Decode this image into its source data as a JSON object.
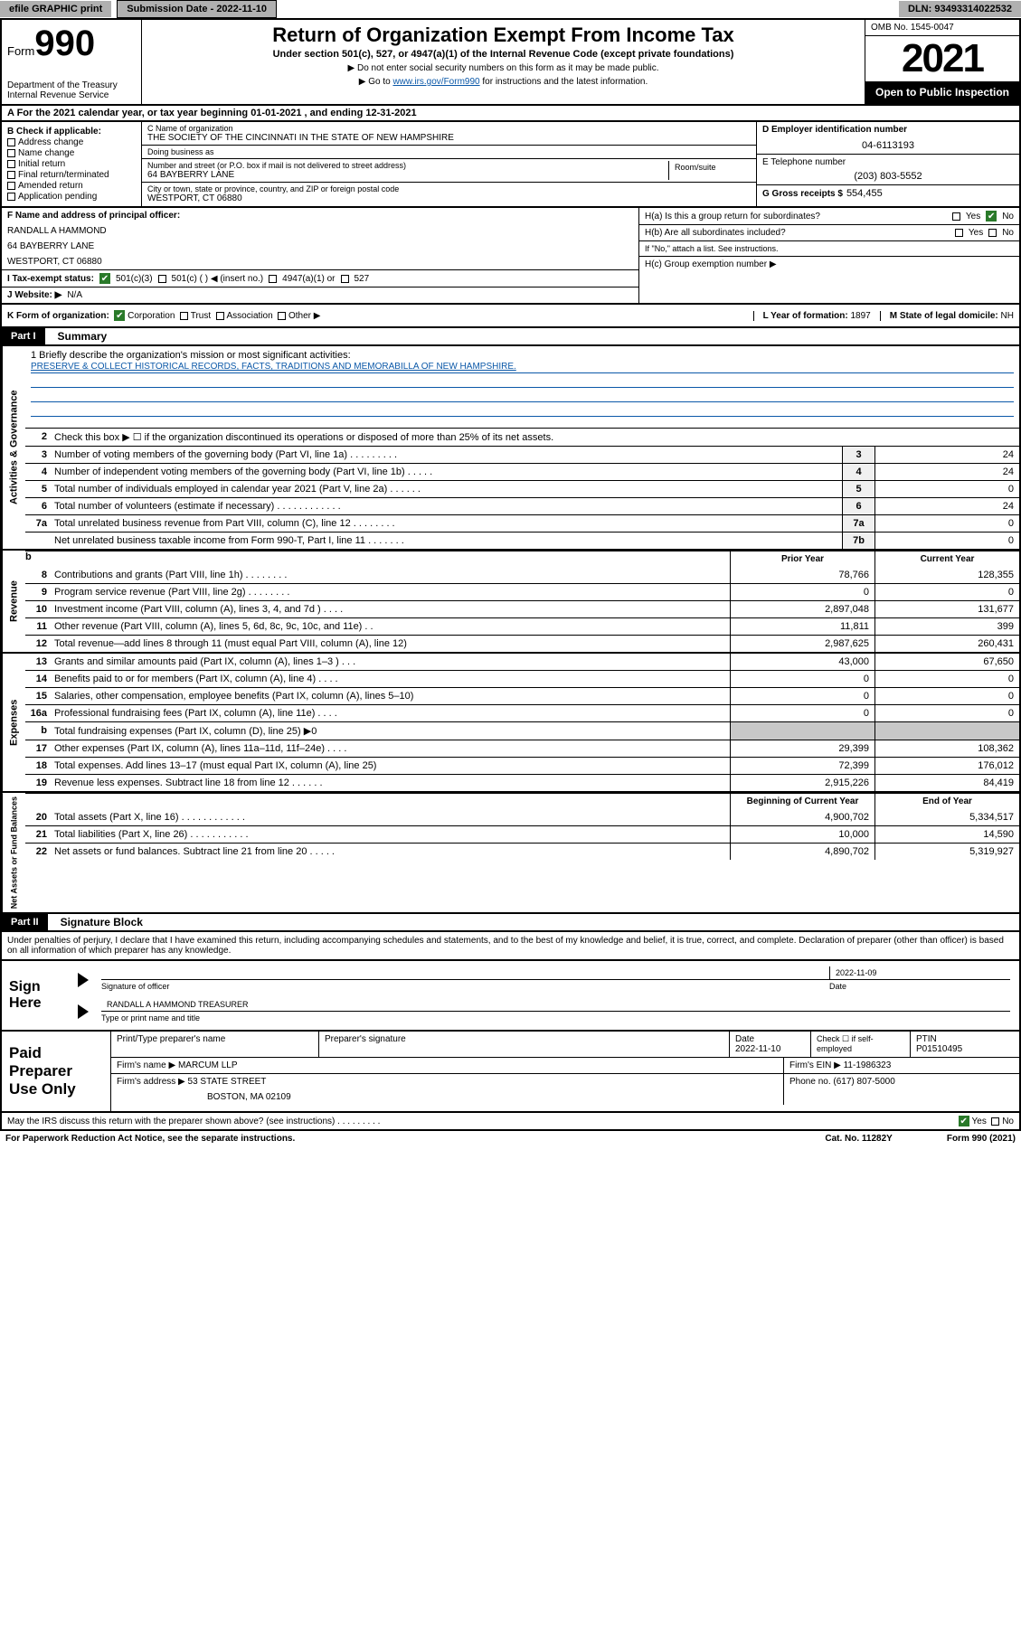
{
  "topbar": {
    "efile": "efile GRAPHIC print",
    "submission_label": "Submission Date - 2022-11-10",
    "dln": "DLN: 93493314022532"
  },
  "header": {
    "form_label": "Form",
    "form_number": "990",
    "dept": "Department of the Treasury",
    "irs": "Internal Revenue Service",
    "title": "Return of Organization Exempt From Income Tax",
    "subtitle": "Under section 501(c), 527, or 4947(a)(1) of the Internal Revenue Code (except private foundations)",
    "note1": "▶ Do not enter social security numbers on this form as it may be made public.",
    "note2_pre": "▶ Go to ",
    "note2_link": "www.irs.gov/Form990",
    "note2_post": " for instructions and the latest information.",
    "omb": "OMB No. 1545-0047",
    "year": "2021",
    "open": "Open to Public Inspection"
  },
  "rowA": "A   For the 2021 calendar year, or tax year beginning 01-01-2021   , and ending 12-31-2021",
  "checkboxes": {
    "hdr": "B Check if applicable:",
    "items": [
      "Address change",
      "Name change",
      "Initial return",
      "Final return/terminated",
      "Amended return",
      "Application pending"
    ]
  },
  "org": {
    "name_lbl": "C Name of organization",
    "name": "THE SOCIETY OF THE CINCINNATI IN THE STATE OF NEW HAMPSHIRE",
    "dba_lbl": "Doing business as",
    "dba": "",
    "street_lbl": "Number and street (or P.O. box if mail is not delivered to street address)",
    "street": "64 BAYBERRY LANE",
    "room_lbl": "Room/suite",
    "city_lbl": "City or town, state or province, country, and ZIP or foreign postal code",
    "city": "WESTPORT, CT  06880"
  },
  "rightcol": {
    "ein_lbl": "D Employer identification number",
    "ein": "04-6113193",
    "tel_lbl": "E Telephone number",
    "tel": "(203) 803-5552",
    "gross_lbl": "G Gross receipts $",
    "gross": "554,455"
  },
  "frow": {
    "f_lbl": "F Name and address of principal officer:",
    "f_name": "RANDALL A HAMMOND",
    "f_addr1": "64 BAYBERRY LANE",
    "f_addr2": "WESTPORT, CT  06880",
    "ha": "H(a)  Is this a group return for subordinates?",
    "ha_yes": "Yes",
    "ha_no": "No",
    "hb": "H(b)  Are all subordinates included?",
    "hb_yes": "Yes",
    "hb_no": "No",
    "hb_note": "If \"No,\" attach a list. See instructions.",
    "hc": "H(c)  Group exemption number ▶"
  },
  "irow": {
    "lbl": "I    Tax-exempt status:",
    "opt1": "501(c)(3)",
    "opt2": "501(c) (   ) ◀ (insert no.)",
    "opt3": "4947(a)(1) or",
    "opt4": "527"
  },
  "jrow": {
    "lbl": "J   Website: ▶",
    "val": "N/A"
  },
  "krow": {
    "lbl": "K Form of organization:",
    "o1": "Corporation",
    "o2": "Trust",
    "o3": "Association",
    "o4": "Other ▶"
  },
  "lrow": {
    "lbl": "L Year of formation:",
    "val": "1897"
  },
  "mrow": {
    "lbl": "M State of legal domicile:",
    "val": "NH"
  },
  "part1": {
    "hdr": "Part I",
    "title": "Summary"
  },
  "mission": {
    "line1_lbl": "1   Briefly describe the organization's mission or most significant activities:",
    "text": "PRESERVE & COLLECT HISTORICAL RECORDS, FACTS, TRADITIONS AND MEMORABILLA OF NEW HAMPSHIRE."
  },
  "gov_lines": {
    "l2": "Check this box ▶ ☐  if the organization discontinued its operations or disposed of more than 25% of its net assets.",
    "l3": {
      "d": "Number of voting members of the governing body (Part VI, line 1a)   .    .    .    .    .    .    .    .    .",
      "b": "3",
      "v": "24"
    },
    "l4": {
      "d": "Number of independent voting members of the governing body (Part VI, line 1b)    .    .    .    .    .",
      "b": "4",
      "v": "24"
    },
    "l5": {
      "d": "Total number of individuals employed in calendar year 2021 (Part V, line 2a)    .    .    .    .    .    .",
      "b": "5",
      "v": "0"
    },
    "l6": {
      "d": "Total number of volunteers (estimate if necessary)    .    .    .    .    .    .    .    .    .    .    .    .",
      "b": "6",
      "v": "24"
    },
    "l7a": {
      "d": "Total unrelated business revenue from Part VIII, column (C), line 12   .    .    .    .    .    .    .    .",
      "b": "7a",
      "v": "0"
    },
    "l7b": {
      "d": "Net unrelated business taxable income from Form 990-T, Part I, line 11    .    .    .    .    .    .    .",
      "b": "7b",
      "v": "0"
    }
  },
  "yr_hdr": {
    "prior": "Prior Year",
    "current": "Current Year",
    "boy": "Beginning of Current Year",
    "eoy": "End of Year"
  },
  "rev": [
    {
      "n": "8",
      "d": "Contributions and grants (Part VIII, line 1h)    .    .    .    .    .    .    .    .",
      "p": "78,766",
      "c": "128,355"
    },
    {
      "n": "9",
      "d": "Program service revenue (Part VIII, line 2g)    .    .    .    .    .    .    .    .",
      "p": "0",
      "c": "0"
    },
    {
      "n": "10",
      "d": "Investment income (Part VIII, column (A), lines 3, 4, and 7d )    .    .    .    .",
      "p": "2,897,048",
      "c": "131,677"
    },
    {
      "n": "11",
      "d": "Other revenue (Part VIII, column (A), lines 5, 6d, 8c, 9c, 10c, and 11e)    .    .",
      "p": "11,811",
      "c": "399"
    },
    {
      "n": "12",
      "d": "Total revenue—add lines 8 through 11 (must equal Part VIII, column (A), line 12)",
      "p": "2,987,625",
      "c": "260,431"
    }
  ],
  "exp": [
    {
      "n": "13",
      "d": "Grants and similar amounts paid (Part IX, column (A), lines 1–3 )    .    .    .",
      "p": "43,000",
      "c": "67,650"
    },
    {
      "n": "14",
      "d": "Benefits paid to or for members (Part IX, column (A), line 4)    .    .    .    .",
      "p": "0",
      "c": "0"
    },
    {
      "n": "15",
      "d": "Salaries, other compensation, employee benefits (Part IX, column (A), lines 5–10)",
      "p": "0",
      "c": "0"
    },
    {
      "n": "16a",
      "d": "Professional fundraising fees (Part IX, column (A), line 11e)    .    .    .    .",
      "p": "0",
      "c": "0"
    },
    {
      "n": "b",
      "d": "Total fundraising expenses (Part IX, column (D), line 25) ▶0",
      "p": "",
      "c": ""
    },
    {
      "n": "17",
      "d": "Other expenses (Part IX, column (A), lines 11a–11d, 11f–24e)    .    .    .    .",
      "p": "29,399",
      "c": "108,362"
    },
    {
      "n": "18",
      "d": "Total expenses. Add lines 13–17 (must equal Part IX, column (A), line 25)",
      "p": "72,399",
      "c": "176,012"
    },
    {
      "n": "19",
      "d": "Revenue less expenses. Subtract line 18 from line 12    .    .    .    .    .    .",
      "p": "2,915,226",
      "c": "84,419"
    }
  ],
  "net": [
    {
      "n": "20",
      "d": "Total assets (Part X, line 16)   .    .    .    .    .    .    .    .    .    .    .    .",
      "p": "4,900,702",
      "c": "5,334,517"
    },
    {
      "n": "21",
      "d": "Total liabilities (Part X, line 26)   .    .    .    .    .    .    .    .    .    .    .",
      "p": "10,000",
      "c": "14,590"
    },
    {
      "n": "22",
      "d": "Net assets or fund balances. Subtract line 21 from line 20   .    .    .    .    .",
      "p": "4,890,702",
      "c": "5,319,927"
    }
  ],
  "part2": {
    "hdr": "Part II",
    "title": "Signature Block"
  },
  "sig": {
    "decl": "Under penalties of perjury, I declare that I have examined this return, including accompanying schedules and statements, and to the best of my knowledge and belief, it is true, correct, and complete. Declaration of preparer (other than officer) is based on all information of which preparer has any knowledge.",
    "sign_here": "Sign Here",
    "sig_officer_lbl": "Signature of officer",
    "date_lbl": "Date",
    "date": "2022-11-09",
    "name": "RANDALL A HAMMOND  TREASURER",
    "name_lbl": "Type or print name and title"
  },
  "paid": {
    "hdr": "Paid Preparer Use Only",
    "c1": "Print/Type preparer's name",
    "c2": "Preparer's signature",
    "c3_lbl": "Date",
    "c3": "2022-11-10",
    "c4": "Check ☐ if self-employed",
    "c5_lbl": "PTIN",
    "c5": "P01510495",
    "firm_name_lbl": "Firm's name    ▶",
    "firm_name": "MARCUM LLP",
    "firm_ein_lbl": "Firm's EIN ▶",
    "firm_ein": "11-1986323",
    "firm_addr_lbl": "Firm's address ▶",
    "firm_addr1": "53 STATE STREET",
    "firm_addr2": "BOSTON, MA  02109",
    "firm_phone_lbl": "Phone no.",
    "firm_phone": "(617) 807-5000"
  },
  "discuss": {
    "q": "May the IRS discuss this return with the preparer shown above? (see instructions)    .    .    .    .    .    .    .    .    .",
    "yes": "Yes",
    "no": "No"
  },
  "footer": {
    "left": "For Paperwork Reduction Act Notice, see the separate instructions.",
    "mid": "Cat. No. 11282Y",
    "right": "Form 990 (2021)"
  }
}
